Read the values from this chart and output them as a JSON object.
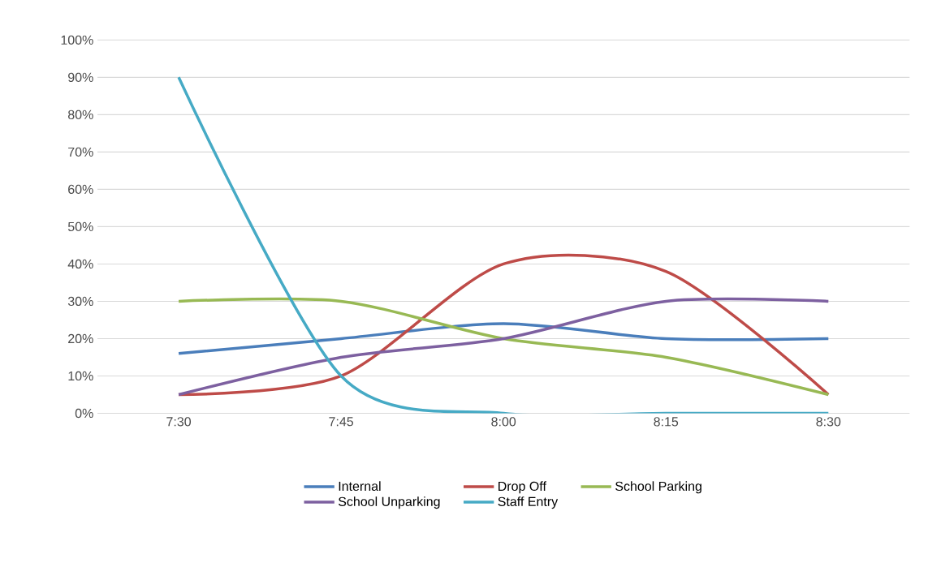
{
  "chart_data": {
    "type": "line",
    "categories": [
      "7:30",
      "7:45",
      "8:00",
      "8:15",
      "8:30"
    ],
    "series": [
      {
        "name": "Internal",
        "color": "#4a7ebb",
        "values": [
          16,
          20,
          24,
          20,
          20
        ]
      },
      {
        "name": "Drop Off",
        "color": "#be4b48",
        "values": [
          5,
          10,
          40,
          38,
          5
        ]
      },
      {
        "name": "School Parking",
        "color": "#98b954",
        "values": [
          30,
          30,
          20,
          15,
          5
        ]
      },
      {
        "name": "School Unparking",
        "color": "#7d60a0",
        "values": [
          5,
          15,
          20,
          30,
          30
        ]
      },
      {
        "name": "Staff Entry",
        "color": "#46aac5",
        "values": [
          90,
          10,
          0,
          0,
          0
        ]
      }
    ],
    "ylim": [
      0,
      100
    ],
    "yticks": [
      {
        "value": 0,
        "label": "0%"
      },
      {
        "value": 10,
        "label": "10%"
      },
      {
        "value": 20,
        "label": "20%"
      },
      {
        "value": 30,
        "label": "30%"
      },
      {
        "value": 40,
        "label": "40%"
      },
      {
        "value": 50,
        "label": "50%"
      },
      {
        "value": 60,
        "label": "60%"
      },
      {
        "value": 70,
        "label": "70%"
      },
      {
        "value": 80,
        "label": "80%"
      },
      {
        "value": 90,
        "label": "90%"
      },
      {
        "value": 100,
        "label": "100%"
      }
    ],
    "grid": "y",
    "legend": "bottom",
    "marker": "none",
    "line_style": "solid"
  }
}
